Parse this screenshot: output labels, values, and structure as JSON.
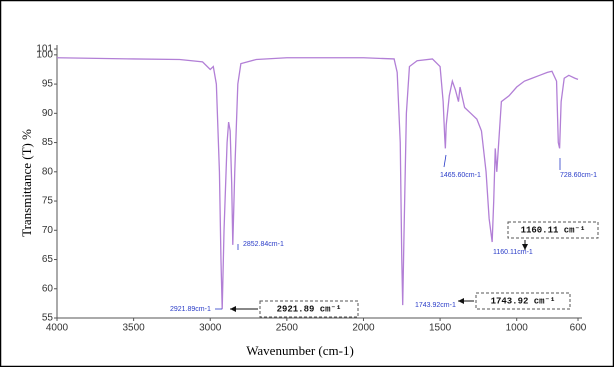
{
  "chart_data": {
    "type": "line",
    "x_label": "Wavenumber (cm-1)",
    "y_label": "Transmittance (T) %",
    "xlim": [
      4000,
      600
    ],
    "ylim": [
      55,
      101
    ],
    "xticks": [
      4000,
      3500,
      3000,
      2500,
      2000,
      1500,
      1000,
      600
    ],
    "yticks": [
      55,
      60,
      65,
      70,
      75,
      80,
      85,
      90,
      95,
      100,
      101
    ],
    "grid": false,
    "series": [
      {
        "color": "#b27fd6",
        "x": [
          4000,
          3500,
          3200,
          3050,
          3000,
          2980,
          2960,
          2940,
          2930,
          2921.89,
          2910,
          2890,
          2880,
          2870,
          2860,
          2852.84,
          2840,
          2820,
          2800,
          2700,
          2500,
          2000,
          1800,
          1780,
          1760,
          1750,
          1743.92,
          1735,
          1720,
          1700,
          1650,
          1550,
          1500,
          1480,
          1470,
          1465.6,
          1460,
          1440,
          1420,
          1400,
          1380,
          1370,
          1340,
          1300,
          1260,
          1230,
          1200,
          1180,
          1160.11,
          1150,
          1140,
          1130,
          1120,
          1100,
          1050,
          1000,
          950,
          900,
          850,
          800,
          770,
          740,
          728.6,
          720,
          710,
          690,
          660,
          620,
          600
        ],
        "values": [
          99.5,
          99.3,
          99.2,
          98.8,
          97.5,
          98,
          95,
          80,
          65,
          56.5,
          70,
          85,
          88.5,
          87,
          78,
          67.5,
          80,
          95,
          98.5,
          99.2,
          99.5,
          99.5,
          99.3,
          97,
          85,
          65,
          57.2,
          70,
          90,
          98,
          99,
          99.3,
          98,
          92,
          86,
          84,
          88,
          93,
          95.5,
          94,
          92,
          94.5,
          91,
          90,
          89,
          87,
          80,
          72,
          68,
          75,
          84,
          80,
          84,
          92,
          93,
          94.5,
          95.5,
          96,
          96.5,
          97,
          97.2,
          95.5,
          85,
          84,
          92,
          96,
          96.5,
          96,
          95.8
        ]
      }
    ],
    "peak_labels": [
      "2921.89cm-1",
      "2852.84cm-1",
      "1743.92cm-1",
      "1465.60cm-1",
      "1160.11cm-1",
      "728.60cm-1"
    ],
    "callouts": [
      "2921.89 cm⁻¹",
      "1743.92 cm⁻¹",
      "1160.11 cm⁻¹"
    ]
  }
}
